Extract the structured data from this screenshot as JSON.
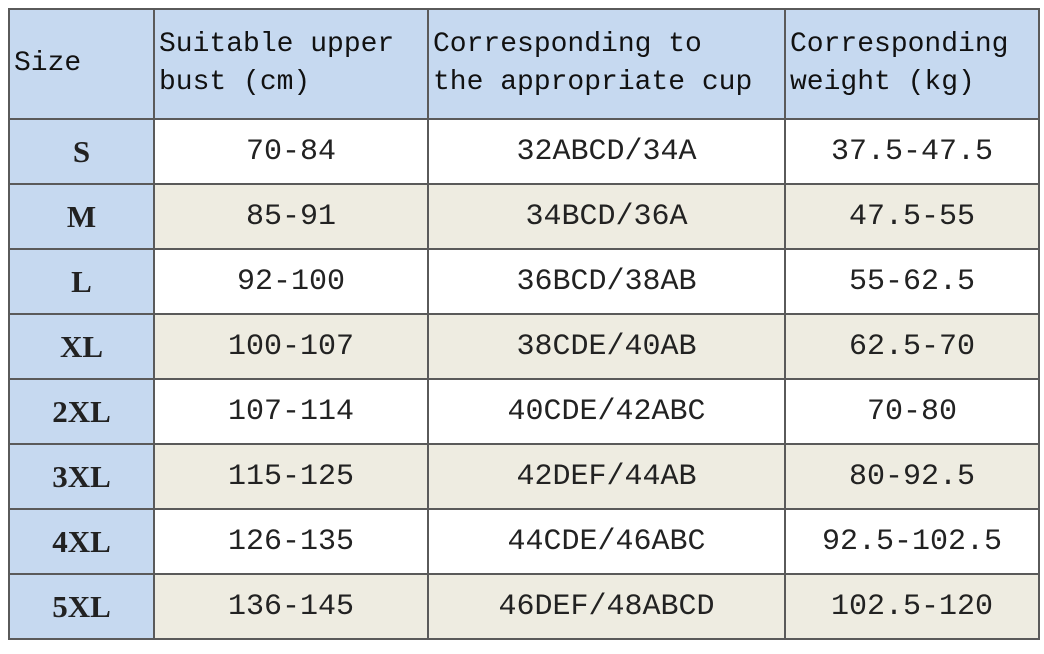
{
  "table": {
    "header": [
      [
        "Size"
      ],
      [
        "Suitable upper",
        "bust (cm)"
      ],
      [
        "Corresponding to",
        "the appropriate cup"
      ],
      [
        "Corresponding",
        "weight (kg)"
      ]
    ],
    "rows": [
      [
        "S",
        "70-84",
        "32ABCD/34A",
        "37.5-47.5"
      ],
      [
        "M",
        "85-91",
        "34BCD/36A",
        "47.5-55"
      ],
      [
        "L",
        "92-100",
        "36BCD/38AB",
        "55-62.5"
      ],
      [
        "XL",
        "100-107",
        "38CDE/40AB",
        "62.5-70"
      ],
      [
        "2XL",
        "107-114",
        "40CDE/42ABC",
        "70-80"
      ],
      [
        "3XL",
        "115-125",
        "42DEF/44AB",
        "80-92.5"
      ],
      [
        "4XL",
        "126-135",
        "44CDE/46ABC",
        "92.5-102.5"
      ],
      [
        "5XL",
        "136-145",
        "46DEF/48ABCD",
        "102.5-120"
      ]
    ]
  }
}
